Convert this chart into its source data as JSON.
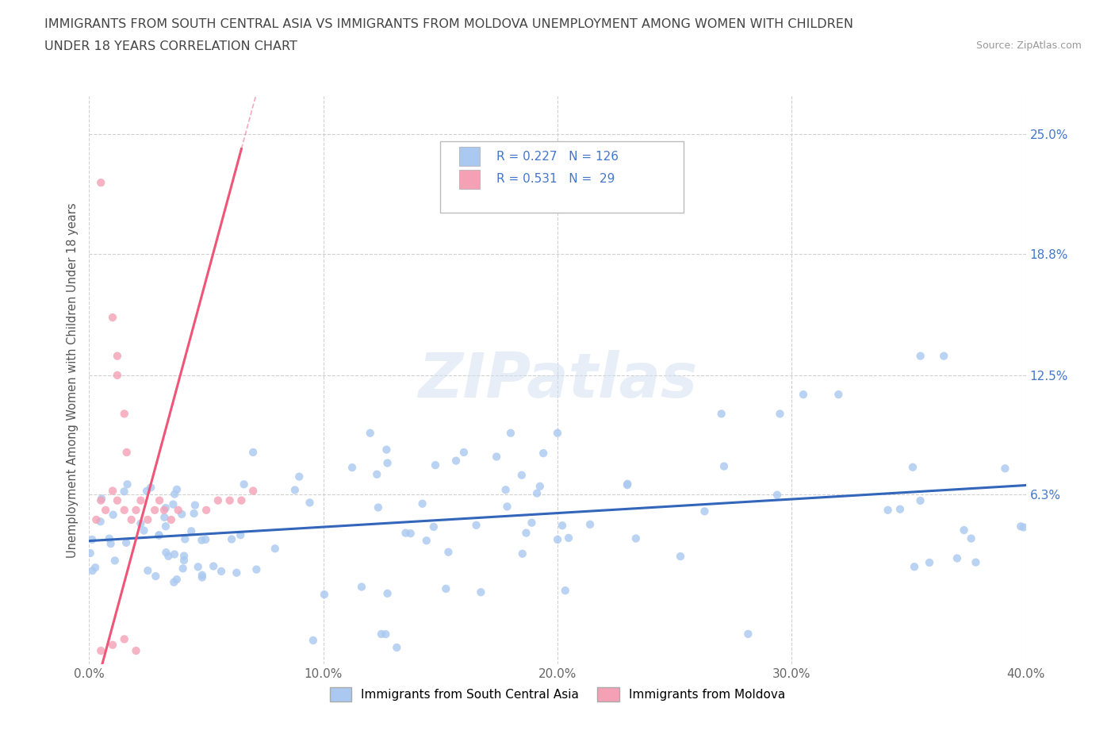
{
  "title_line1": "IMMIGRANTS FROM SOUTH CENTRAL ASIA VS IMMIGRANTS FROM MOLDOVA UNEMPLOYMENT AMONG WOMEN WITH CHILDREN",
  "title_line2": "UNDER 18 YEARS CORRELATION CHART",
  "source_text": "Source: ZipAtlas.com",
  "ylabel": "Unemployment Among Women with Children Under 18 years",
  "xlim": [
    0.0,
    0.4
  ],
  "ylim": [
    -0.025,
    0.27
  ],
  "ytick_vals": [
    0.063,
    0.125,
    0.188,
    0.25
  ],
  "ytick_labels": [
    "6.3%",
    "12.5%",
    "18.8%",
    "25.0%"
  ],
  "xtick_vals": [
    0.0,
    0.1,
    0.2,
    0.3,
    0.4
  ],
  "xtick_labels": [
    "0.0%",
    "10.0%",
    "20.0%",
    "30.0%",
    "40.0%"
  ],
  "watermark": "ZIPatlas",
  "series1_color": "#aac8f0",
  "series2_color": "#f4a0b5",
  "trendline1_color": "#3366bb",
  "trendline2_color": "#ee5577",
  "grid_color": "#d0d0d0",
  "title_color": "#444444",
  "tick_color": "#4477cc",
  "label_color": "#4477cc",
  "source_color": "#999999",
  "legend_r1": "R = 0.227",
  "legend_n1": "N = 126",
  "legend_r2": "R = 0.531",
  "legend_n2": "N =  29"
}
